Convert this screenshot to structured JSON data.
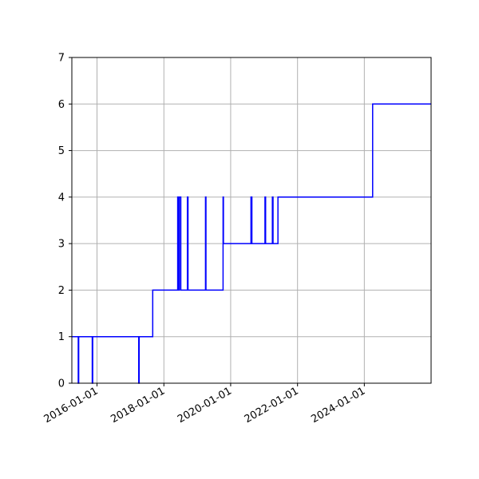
{
  "chart_data": {
    "type": "line",
    "step": "post",
    "title": "",
    "xlabel": "",
    "ylabel": "",
    "grid": true,
    "colors": {
      "series": "#0000ff",
      "grid": "#b0b0b0",
      "axes": "#000000"
    },
    "xlim": [
      "2015-04-01",
      "2025-12-31"
    ],
    "ylim": [
      0,
      7
    ],
    "x_ticks": [
      "2016-01-01",
      "2018-01-01",
      "2020-01-01",
      "2022-01-01",
      "2024-01-01"
    ],
    "y_ticks": [
      0,
      1,
      2,
      3,
      4,
      5,
      6,
      7
    ],
    "series": [
      {
        "points": [
          [
            "2015-04-01",
            1
          ],
          [
            "2015-06-10",
            0
          ],
          [
            "2015-06-15",
            1
          ],
          [
            "2015-11-10",
            0
          ],
          [
            "2015-11-15",
            1
          ],
          [
            "2017-04-01",
            0
          ],
          [
            "2017-04-06",
            1
          ],
          [
            "2017-09-01",
            2
          ],
          [
            "2018-06-01",
            4
          ],
          [
            "2018-06-10",
            2
          ],
          [
            "2018-06-20",
            4
          ],
          [
            "2018-07-05",
            2
          ],
          [
            "2018-09-15",
            4
          ],
          [
            "2018-09-22",
            2
          ],
          [
            "2019-04-01",
            4
          ],
          [
            "2019-04-06",
            2
          ],
          [
            "2019-10-10",
            4
          ],
          [
            "2019-10-14",
            3
          ],
          [
            "2020-08-10",
            4
          ],
          [
            "2020-08-20",
            3
          ],
          [
            "2021-01-10",
            4
          ],
          [
            "2021-01-17",
            3
          ],
          [
            "2021-04-01",
            4
          ],
          [
            "2021-04-08",
            3
          ],
          [
            "2021-06-01",
            4
          ],
          [
            "2024-04-01",
            6
          ],
          [
            "2025-12-31",
            6
          ]
        ]
      }
    ]
  }
}
